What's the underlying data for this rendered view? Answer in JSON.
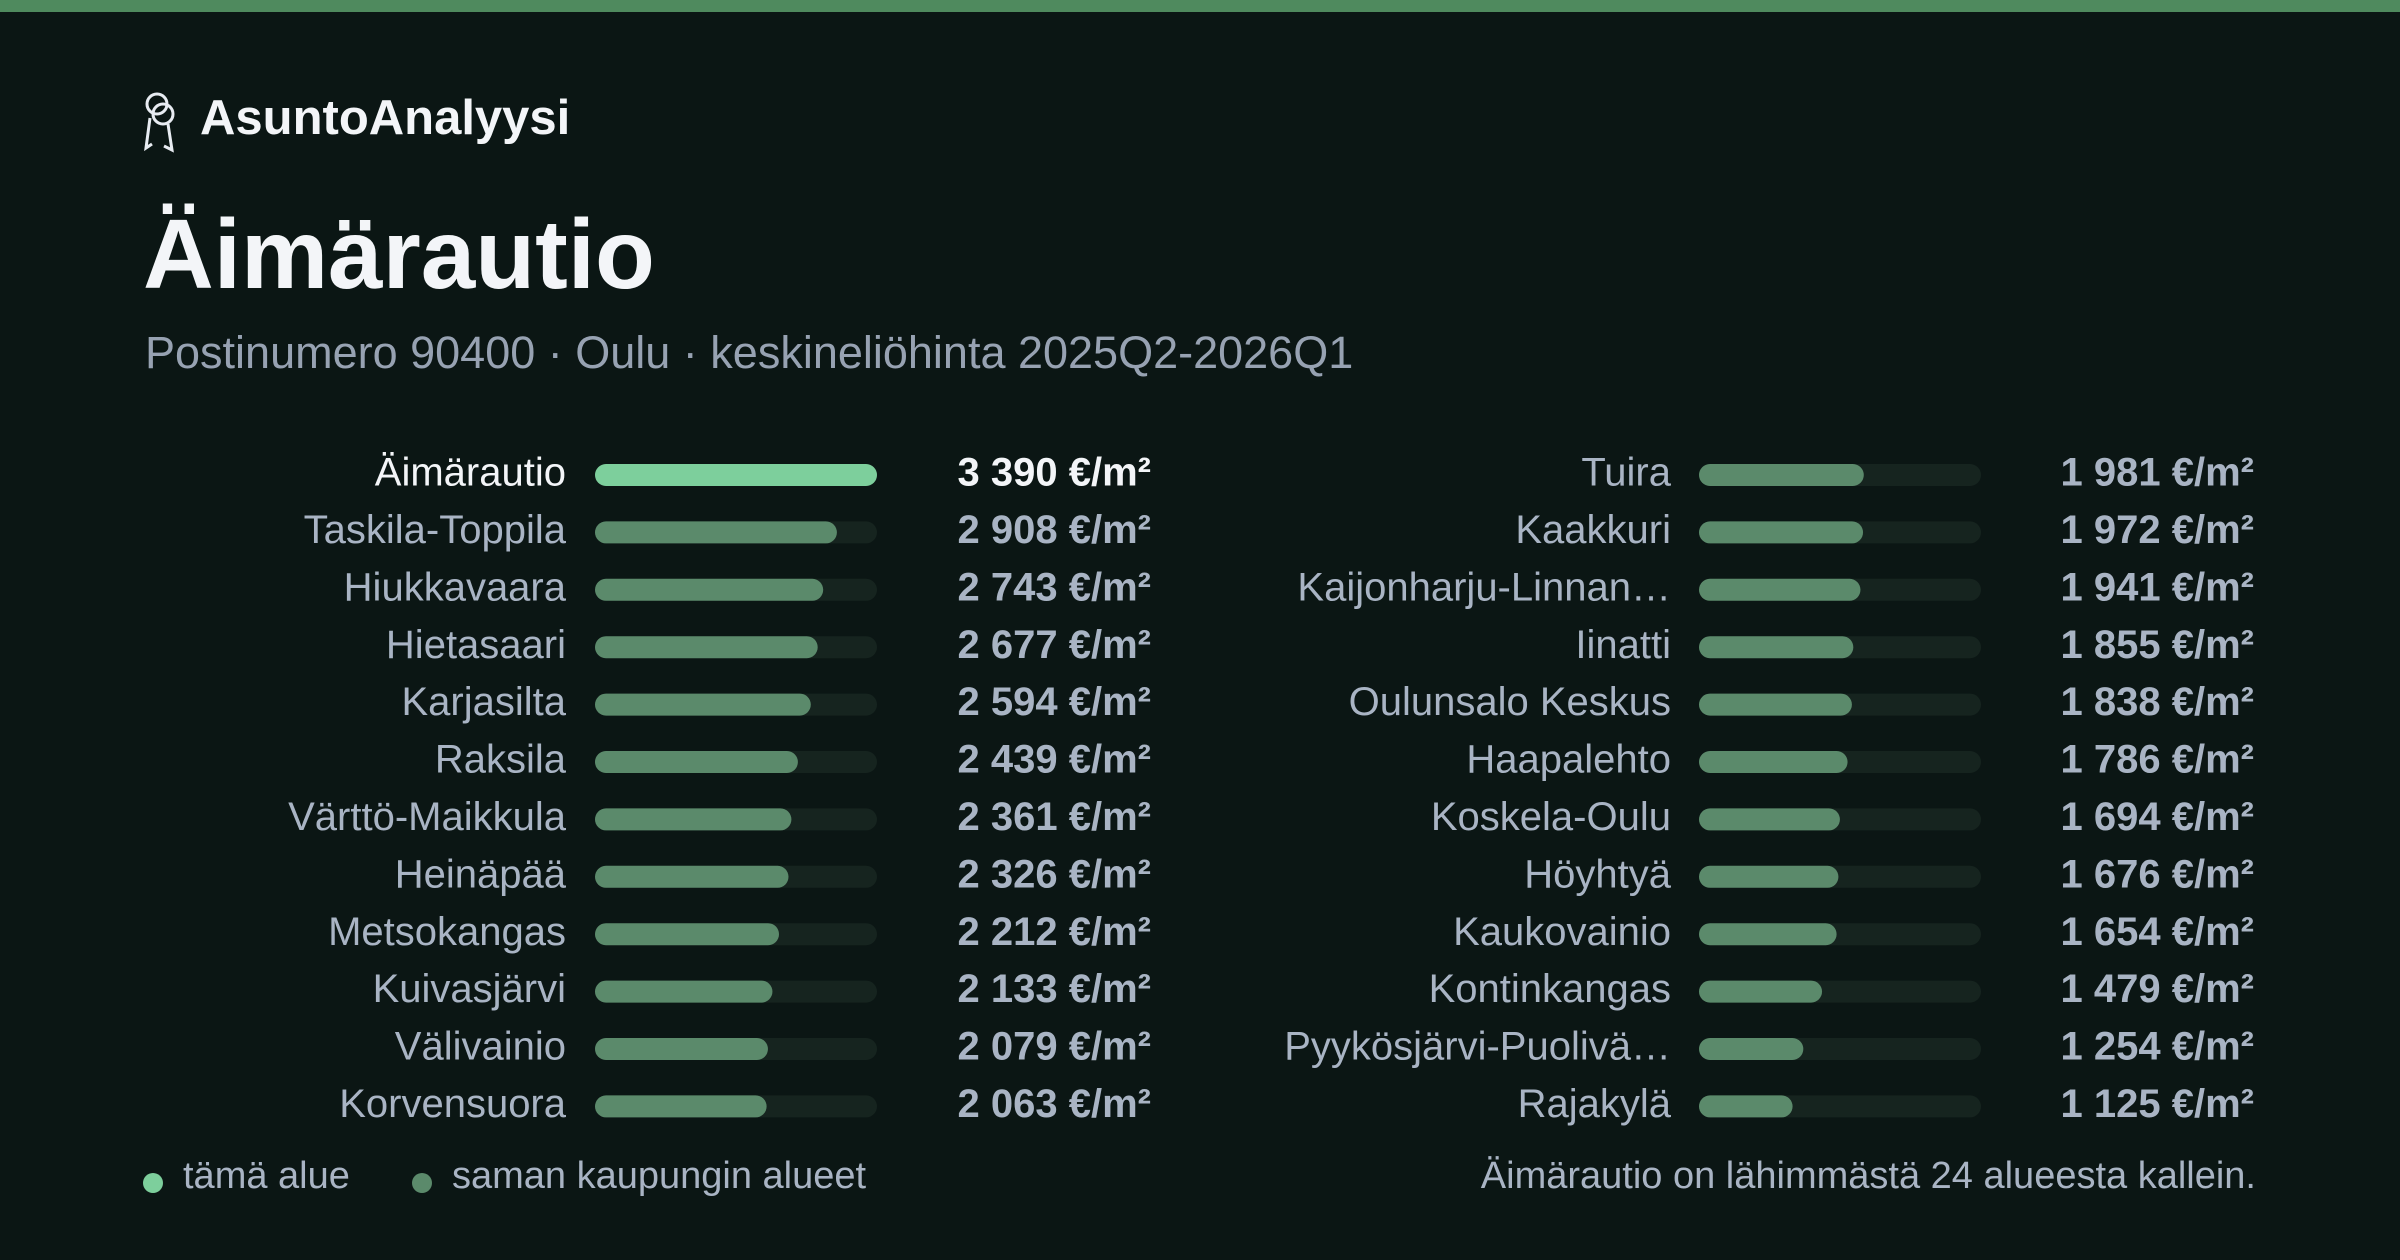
{
  "chart_data": {
    "type": "bar",
    "brand": "AsuntoAnalyysi",
    "title": "Äimärautio",
    "subtitle": "Postinumero 90400 · Oulu · keskineliöhinta 2025Q2-2026Q1",
    "categories": [
      "Äimärautio",
      "Taskila-Toppila",
      "Hiukkavaara",
      "Hietasaari",
      "Karjasilta",
      "Raksila",
      "Värttö-Maikkula",
      "Heinäpää",
      "Metsokangas",
      "Kuivasjärvi",
      "Välivainio",
      "Korvensuora",
      "Tuira",
      "Kaakkuri",
      "Kaijonharju-Linnan…",
      "Iinatti",
      "Oulunsalo Keskus",
      "Haapalehto",
      "Koskela-Oulu",
      "Höyhtyä",
      "Kaukovainio",
      "Kontinkangas",
      "Pyykösjärvi-Puolivä…",
      "Rajakylä"
    ],
    "values": [
      3390,
      2908,
      2743,
      2677,
      2594,
      2439,
      2361,
      2326,
      2212,
      2133,
      2079,
      2063,
      1981,
      1972,
      1941,
      1855,
      1838,
      1786,
      1694,
      1676,
      1654,
      1479,
      1254,
      1125
    ],
    "value_labels": [
      "3 390 €/m²",
      "2 908 €/m²",
      "2 743 €/m²",
      "2 677 €/m²",
      "2 594 €/m²",
      "2 439 €/m²",
      "2 361 €/m²",
      "2 326 €/m²",
      "2 212 €/m²",
      "2 133 €/m²",
      "2 079 €/m²",
      "2 063 €/m²",
      "1 981 €/m²",
      "1 972 €/m²",
      "1 941 €/m²",
      "1 855 €/m²",
      "1 838 €/m²",
      "1 786 €/m²",
      "1 694 €/m²",
      "1 676 €/m²",
      "1 654 €/m²",
      "1 479 €/m²",
      "1 254 €/m²",
      "1 125 €/m²"
    ],
    "highlight_index": 0,
    "legend": [
      {
        "label": "tämä alue",
        "color": "#7dcf9c"
      },
      {
        "label": "saman kaupungin alueet",
        "color": "#5b8a6b"
      }
    ],
    "note": "Äimärautio on lähimmästä 24 alueesta kallein."
  }
}
